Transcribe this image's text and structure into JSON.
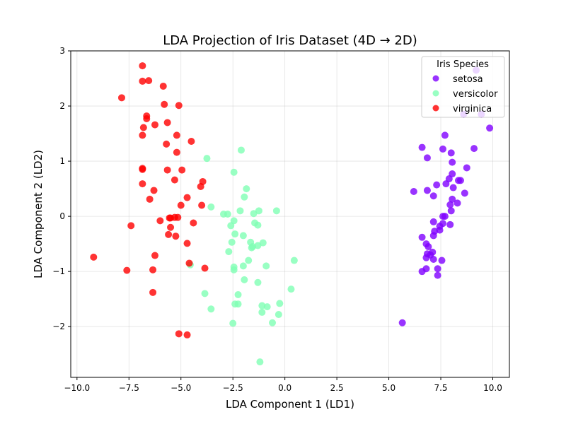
{
  "chart_data": {
    "type": "scatter",
    "title": "LDA Projection of Iris Dataset (4D → 2D)",
    "xlabel": "LDA Component 1 (LD1)",
    "ylabel": "LDA Component 2 (LD2)",
    "xlim": [
      -10.3,
      10.8
    ],
    "ylim": [
      -2.92,
      3.0
    ],
    "x_ticks": [
      -10,
      -7.5,
      -5,
      -2.5,
      0,
      2.5,
      5,
      7.5,
      10
    ],
    "x_tick_labels": [
      "−10.0",
      "−7.5",
      "−5.0",
      "−2.5",
      "0.0",
      "2.5",
      "5.0",
      "7.5",
      "10.0"
    ],
    "y_ticks": [
      -2,
      -1,
      0,
      1,
      2,
      3
    ],
    "y_tick_labels": [
      "−2",
      "−1",
      "0",
      "1",
      "2",
      "3"
    ],
    "grid": true,
    "legend": {
      "title": "Iris Species",
      "position": "top-right"
    },
    "series": [
      {
        "name": "setosa",
        "color": "#8000ff",
        "points": [
          [
            9.45,
            1.85
          ],
          [
            8.6,
            1.85
          ],
          [
            9.85,
            1.6
          ],
          [
            7.7,
            1.47
          ],
          [
            6.6,
            1.25
          ],
          [
            7.6,
            1.22
          ],
          [
            9.1,
            1.23
          ],
          [
            8.0,
            1.15
          ],
          [
            6.85,
            1.06
          ],
          [
            8.05,
            0.98
          ],
          [
            8.75,
            0.88
          ],
          [
            8.05,
            0.77
          ],
          [
            7.9,
            0.68
          ],
          [
            8.35,
            0.65
          ],
          [
            8.45,
            0.65
          ],
          [
            7.75,
            0.59
          ],
          [
            7.3,
            0.57
          ],
          [
            8.1,
            0.52
          ],
          [
            6.2,
            0.45
          ],
          [
            6.85,
            0.47
          ],
          [
            8.65,
            0.42
          ],
          [
            7.15,
            0.37
          ],
          [
            8.05,
            0.31
          ],
          [
            7.95,
            0.21
          ],
          [
            8.3,
            0.24
          ],
          [
            8.0,
            0.1
          ],
          [
            7.6,
            0.0
          ],
          [
            7.7,
            0.0
          ],
          [
            7.15,
            -0.1
          ],
          [
            7.6,
            -0.13
          ],
          [
            7.45,
            -0.18
          ],
          [
            7.95,
            -0.15
          ],
          [
            7.2,
            -0.27
          ],
          [
            7.45,
            -0.25
          ],
          [
            7.15,
            -0.35
          ],
          [
            6.6,
            -0.38
          ],
          [
            6.8,
            -0.5
          ],
          [
            6.9,
            -0.55
          ],
          [
            7.1,
            -0.65
          ],
          [
            6.85,
            -0.68
          ],
          [
            7.0,
            -0.7
          ],
          [
            6.8,
            -0.75
          ],
          [
            7.15,
            -0.78
          ],
          [
            7.55,
            -0.8
          ],
          [
            6.8,
            -0.95
          ],
          [
            7.35,
            -0.95
          ],
          [
            6.6,
            -1.0
          ],
          [
            7.35,
            -1.07
          ],
          [
            5.65,
            -1.93
          ],
          [
            9.2,
            2.65
          ]
        ]
      },
      {
        "name": "versicolor",
        "color": "#80ffb4",
        "points": [
          [
            -3.75,
            1.05
          ],
          [
            -2.1,
            1.2
          ],
          [
            -2.45,
            0.8
          ],
          [
            -1.85,
            0.5
          ],
          [
            -1.95,
            0.35
          ],
          [
            -3.55,
            0.17
          ],
          [
            -2.95,
            0.04
          ],
          [
            -2.75,
            0.04
          ],
          [
            -2.15,
            0.1
          ],
          [
            -1.5,
            0.05
          ],
          [
            -1.25,
            0.1
          ],
          [
            -0.4,
            0.1
          ],
          [
            -2.45,
            -0.08
          ],
          [
            -2.6,
            -0.17
          ],
          [
            -1.45,
            -0.12
          ],
          [
            -1.3,
            -0.16
          ],
          [
            -2.4,
            -0.32
          ],
          [
            -2.0,
            -0.35
          ],
          [
            -1.65,
            -0.47
          ],
          [
            -1.55,
            -0.55
          ],
          [
            -1.3,
            -0.53
          ],
          [
            -1.05,
            -0.48
          ],
          [
            -1.6,
            -0.57
          ],
          [
            -2.55,
            -0.47
          ],
          [
            -2.7,
            -0.64
          ],
          [
            -1.75,
            -0.8
          ],
          [
            -2.0,
            -0.9
          ],
          [
            -2.45,
            -0.92
          ],
          [
            -2.45,
            -0.97
          ],
          [
            -0.9,
            -0.9
          ],
          [
            0.45,
            -0.8
          ],
          [
            -4.55,
            -0.88
          ],
          [
            -1.95,
            -1.15
          ],
          [
            -1.3,
            -1.2
          ],
          [
            -3.85,
            -1.4
          ],
          [
            -2.25,
            -1.42
          ],
          [
            0.3,
            -1.32
          ],
          [
            -2.4,
            -1.59
          ],
          [
            -2.25,
            -1.59
          ],
          [
            -1.1,
            -1.62
          ],
          [
            -0.85,
            -1.64
          ],
          [
            -0.25,
            -1.58
          ],
          [
            -3.55,
            -1.68
          ],
          [
            -1.1,
            -1.74
          ],
          [
            -0.3,
            -1.78
          ],
          [
            -0.6,
            -1.93
          ],
          [
            -2.5,
            -1.94
          ],
          [
            -1.2,
            -2.64
          ]
        ]
      },
      {
        "name": "virginica",
        "color": "#ff0000",
        "points": [
          [
            -6.85,
            2.73
          ],
          [
            -6.85,
            2.45
          ],
          [
            -6.55,
            2.46
          ],
          [
            -5.85,
            2.36
          ],
          [
            -7.85,
            2.15
          ],
          [
            -5.8,
            2.03
          ],
          [
            -5.1,
            2.01
          ],
          [
            -6.65,
            1.82
          ],
          [
            -6.65,
            1.77
          ],
          [
            -5.65,
            1.7
          ],
          [
            -6.25,
            1.66
          ],
          [
            -6.8,
            1.61
          ],
          [
            -6.85,
            1.47
          ],
          [
            -5.2,
            1.47
          ],
          [
            -5.7,
            1.31
          ],
          [
            -4.5,
            1.36
          ],
          [
            -5.2,
            1.16
          ],
          [
            -6.85,
            0.85
          ],
          [
            -6.85,
            0.87
          ],
          [
            -5.65,
            0.84
          ],
          [
            -4.95,
            0.84
          ],
          [
            -5.3,
            0.66
          ],
          [
            -3.95,
            0.63
          ],
          [
            -6.85,
            0.59
          ],
          [
            -4.05,
            0.54
          ],
          [
            -6.3,
            0.47
          ],
          [
            -4.7,
            0.34
          ],
          [
            -6.5,
            0.31
          ],
          [
            -5.0,
            0.2
          ],
          [
            -4.0,
            0.2
          ],
          [
            -5.3,
            -0.02
          ],
          [
            -5.15,
            -0.02
          ],
          [
            -5.5,
            -0.03
          ],
          [
            -5.55,
            -0.03
          ],
          [
            -6.0,
            -0.08
          ],
          [
            -7.4,
            -0.17
          ],
          [
            -4.4,
            -0.12
          ],
          [
            -5.5,
            -0.2
          ],
          [
            -5.6,
            -0.33
          ],
          [
            -5.25,
            -0.36
          ],
          [
            -4.7,
            -0.49
          ],
          [
            -6.25,
            -0.71
          ],
          [
            -9.2,
            -0.74
          ],
          [
            -4.6,
            -0.85
          ],
          [
            -3.85,
            -0.94
          ],
          [
            -7.6,
            -0.98
          ],
          [
            -6.35,
            -0.97
          ],
          [
            -6.35,
            -1.38
          ],
          [
            -5.1,
            -2.13
          ],
          [
            -4.7,
            -2.15
          ]
        ]
      }
    ]
  }
}
